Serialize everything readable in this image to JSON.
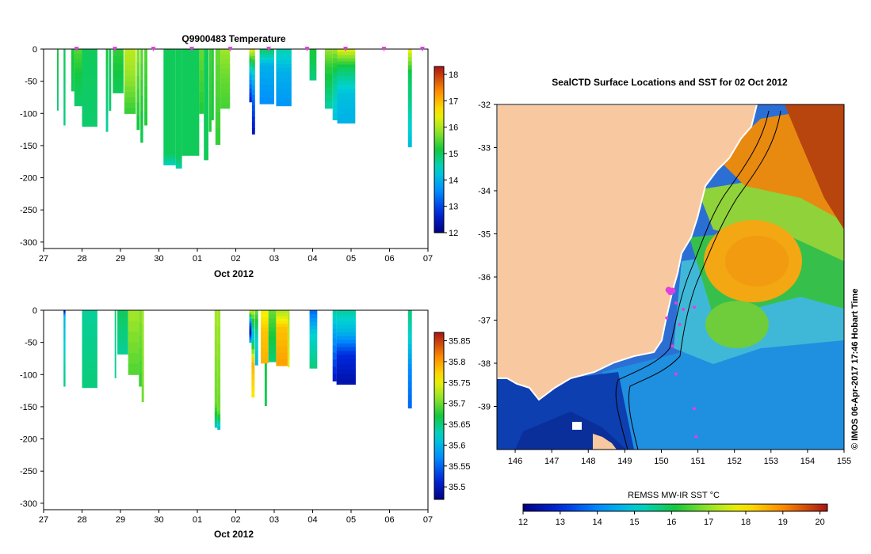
{
  "chart_data": [
    {
      "type": "heatmap",
      "title": "Q9900483  Temperature",
      "xlabel": "Oct 2012",
      "ylabel": "",
      "x_ticks": [
        "27",
        "28",
        "29",
        "30",
        "01",
        "02",
        "03",
        "04",
        "05",
        "06",
        "07"
      ],
      "xlim": [
        0,
        10
      ],
      "ylim": [
        -310,
        0
      ],
      "y_ticks": [
        "0",
        "-50",
        "-100",
        "-150",
        "-200",
        "-250",
        "-300"
      ],
      "colorbar": {
        "min": 12,
        "max": 18.3,
        "ticks": [
          "12",
          "13",
          "14",
          "15",
          "16",
          "17",
          "18"
        ]
      },
      "surface_marker_days": [
        1,
        2,
        3,
        4,
        5,
        6,
        7,
        8,
        9,
        10
      ],
      "profiles": [
        {
          "x": 0.35,
          "w": 0.04,
          "depth": 95,
          "colors": [
            [
              0,
              15.2
            ],
            [
              0.5,
              15.0
            ],
            [
              1,
              14.8
            ]
          ]
        },
        {
          "x": 0.52,
          "w": 0.05,
          "depth": 118,
          "colors": [
            [
              0,
              15.0
            ],
            [
              1,
              14.8
            ]
          ]
        },
        {
          "x": 0.72,
          "w": 0.08,
          "depth": 65,
          "colors": [
            [
              0,
              15.2
            ],
            [
              1,
              15.0
            ]
          ]
        },
        {
          "x": 0.8,
          "w": 0.2,
          "depth": 88,
          "colors": [
            [
              0,
              15.5
            ],
            [
              0.5,
              15.1
            ],
            [
              1,
              14.9
            ]
          ]
        },
        {
          "x": 1.0,
          "w": 0.4,
          "depth": 120,
          "colors": [
            [
              0,
              15.0
            ],
            [
              1,
              14.9
            ]
          ]
        },
        {
          "x": 1.62,
          "w": 0.06,
          "depth": 128,
          "colors": [
            [
              0,
              15.2
            ],
            [
              1,
              14.6
            ]
          ]
        },
        {
          "x": 1.7,
          "w": 0.06,
          "depth": 95,
          "colors": [
            [
              0,
              15.0
            ],
            [
              1,
              14.9
            ]
          ]
        },
        {
          "x": 1.8,
          "w": 0.28,
          "depth": 68,
          "colors": [
            [
              0,
              15.3
            ],
            [
              1,
              15.0
            ]
          ]
        },
        {
          "x": 2.1,
          "w": 0.3,
          "depth": 100,
          "colors": [
            [
              0,
              16.1
            ],
            [
              0.5,
              15.8
            ],
            [
              1,
              15.3
            ]
          ]
        },
        {
          "x": 2.42,
          "w": 0.08,
          "depth": 125,
          "colors": [
            [
              0,
              15.8
            ],
            [
              1,
              15.1
            ]
          ]
        },
        {
          "x": 2.52,
          "w": 0.07,
          "depth": 145,
          "colors": [
            [
              0,
              15.6
            ],
            [
              1,
              15.0
            ]
          ]
        },
        {
          "x": 2.62,
          "w": 0.08,
          "depth": 118,
          "colors": [
            [
              0,
              15.5
            ],
            [
              1,
              15.2
            ]
          ]
        },
        {
          "x": 3.12,
          "w": 0.32,
          "depth": 180,
          "colors": [
            [
              0,
              15.0
            ],
            [
              0.9,
              15.0
            ],
            [
              1,
              14.5
            ]
          ]
        },
        {
          "x": 3.44,
          "w": 0.16,
          "depth": 185,
          "colors": [
            [
              0,
              15.0
            ],
            [
              0.9,
              15.0
            ],
            [
              1,
              14.6
            ]
          ]
        },
        {
          "x": 3.6,
          "w": 0.45,
          "depth": 165,
          "colors": [
            [
              0,
              15.0
            ],
            [
              1,
              15.0
            ]
          ]
        },
        {
          "x": 4.05,
          "w": 0.12,
          "depth": 100,
          "colors": [
            [
              0,
              15.6
            ],
            [
              1,
              15.2
            ]
          ]
        },
        {
          "x": 4.17,
          "w": 0.12,
          "depth": 172,
          "colors": [
            [
              0,
              15.0
            ],
            [
              1,
              15.0
            ]
          ]
        },
        {
          "x": 4.3,
          "w": 0.07,
          "depth": 128,
          "colors": [
            [
              0,
              15.4
            ],
            [
              1,
              15.2
            ]
          ]
        },
        {
          "x": 4.37,
          "w": 0.06,
          "depth": 110,
          "colors": [
            [
              0,
              15.3
            ],
            [
              1,
              15.1
            ]
          ]
        },
        {
          "x": 4.47,
          "w": 0.13,
          "depth": 148,
          "colors": [
            [
              0,
              15.6
            ],
            [
              1,
              15.3
            ]
          ]
        },
        {
          "x": 4.6,
          "w": 0.25,
          "depth": 92,
          "colors": [
            [
              0,
              15.9
            ],
            [
              0.5,
              15.6
            ],
            [
              1,
              15.4
            ]
          ]
        },
        {
          "x": 5.35,
          "w": 0.07,
          "depth": 82,
          "colors": [
            [
              0,
              16.5
            ],
            [
              0.2,
              15.2
            ],
            [
              0.5,
              13.9
            ],
            [
              1,
              12.6
            ]
          ]
        },
        {
          "x": 5.42,
          "w": 0.08,
          "depth": 132,
          "colors": [
            [
              0,
              16.3
            ],
            [
              0.25,
              14.5
            ],
            [
              0.6,
              13.3
            ],
            [
              1,
              12.4
            ]
          ]
        },
        {
          "x": 5.62,
          "w": 0.38,
          "depth": 85,
          "colors": [
            [
              0,
              15.0
            ],
            [
              0.3,
              14.0
            ],
            [
              1,
              13.6
            ]
          ]
        },
        {
          "x": 6.05,
          "w": 0.4,
          "depth": 88,
          "colors": [
            [
              0,
              14.6
            ],
            [
              0.4,
              14.0
            ],
            [
              1,
              13.7
            ]
          ]
        },
        {
          "x": 6.92,
          "w": 0.18,
          "depth": 48,
          "colors": [
            [
              0,
              15.2
            ],
            [
              1,
              14.8
            ]
          ]
        },
        {
          "x": 7.32,
          "w": 0.2,
          "depth": 92,
          "colors": [
            [
              0,
              15.9
            ],
            [
              0.3,
              15.3
            ],
            [
              1,
              14.6
            ]
          ]
        },
        {
          "x": 7.52,
          "w": 0.12,
          "depth": 110,
          "colors": [
            [
              0,
              15.9
            ],
            [
              0.4,
              14.8
            ],
            [
              1,
              14.2
            ]
          ]
        },
        {
          "x": 7.64,
          "w": 0.47,
          "depth": 115,
          "colors": [
            [
              0,
              16.4
            ],
            [
              0.25,
              15.0
            ],
            [
              0.6,
              14.2
            ],
            [
              1,
              14.0
            ]
          ]
        },
        {
          "x": 9.48,
          "w": 0.1,
          "depth": 152,
          "colors": [
            [
              0,
              16.5
            ],
            [
              0.25,
              15.0
            ],
            [
              0.5,
              14.8
            ],
            [
              0.8,
              14.4
            ],
            [
              1,
              14.1
            ]
          ]
        }
      ]
    },
    {
      "type": "heatmap",
      "title": "",
      "xlabel": "Oct 2012",
      "ylabel": "",
      "x_ticks": [
        "27",
        "28",
        "29",
        "30",
        "01",
        "02",
        "03",
        "04",
        "05",
        "06",
        "07"
      ],
      "xlim": [
        0,
        10
      ],
      "ylim": [
        -310,
        0
      ],
      "y_ticks": [
        "0",
        "-50",
        "-100",
        "-150",
        "-200",
        "-250",
        "-300"
      ],
      "colorbar": {
        "min": 35.47,
        "max": 35.87,
        "ticks": [
          "35.5",
          "35.55",
          "35.6",
          "35.65",
          "35.7",
          "35.75",
          "35.8",
          "35.85"
        ]
      },
      "profiles": [
        {
          "x": 0.52,
          "w": 0.05,
          "depth": 118,
          "colors": [
            [
              0,
              35.48
            ],
            [
              0.08,
              35.6
            ],
            [
              1,
              35.65
            ]
          ]
        },
        {
          "x": 1.0,
          "w": 0.4,
          "depth": 120,
          "colors": [
            [
              0,
              35.64
            ],
            [
              1,
              35.65
            ]
          ]
        },
        {
          "x": 1.85,
          "w": 0.04,
          "depth": 105,
          "colors": [
            [
              0,
              35.65
            ],
            [
              1,
              35.64
            ]
          ]
        },
        {
          "x": 1.92,
          "w": 0.28,
          "depth": 68,
          "colors": [
            [
              0,
              35.66
            ],
            [
              1,
              35.64
            ]
          ]
        },
        {
          "x": 2.2,
          "w": 0.28,
          "depth": 100,
          "colors": [
            [
              0,
              35.72
            ],
            [
              1,
              35.69
            ]
          ]
        },
        {
          "x": 2.48,
          "w": 0.08,
          "depth": 118,
          "colors": [
            [
              0,
              35.71
            ],
            [
              1,
              35.68
            ]
          ]
        },
        {
          "x": 2.55,
          "w": 0.06,
          "depth": 142,
          "colors": [
            [
              0,
              35.72
            ],
            [
              1,
              35.7
            ]
          ]
        },
        {
          "x": 4.45,
          "w": 0.07,
          "depth": 182,
          "colors": [
            [
              0,
              35.72
            ],
            [
              0.8,
              35.7
            ],
            [
              1,
              35.63
            ]
          ]
        },
        {
          "x": 4.52,
          "w": 0.08,
          "depth": 185,
          "colors": [
            [
              0,
              35.72
            ],
            [
              0.85,
              35.7
            ],
            [
              1,
              35.6
            ]
          ]
        },
        {
          "x": 5.75,
          "w": 0.06,
          "depth": 148,
          "colors": [
            [
              0,
              35.68
            ],
            [
              1,
              35.66
            ]
          ]
        },
        {
          "x": 5.35,
          "w": 0.06,
          "depth": 50,
          "colors": [
            [
              0,
              35.75
            ],
            [
              0.4,
              35.55
            ],
            [
              0.7,
              35.49
            ],
            [
              1,
              35.6
            ]
          ]
        },
        {
          "x": 5.41,
          "w": 0.08,
          "depth": 135,
          "colors": [
            [
              0,
              35.73
            ],
            [
              0.3,
              35.6
            ],
            [
              0.6,
              35.79
            ],
            [
              1,
              35.76
            ]
          ]
        },
        {
          "x": 5.5,
          "w": 0.08,
          "depth": 85,
          "colors": [
            [
              0,
              35.7
            ],
            [
              0.5,
              35.63
            ],
            [
              1,
              35.6
            ]
          ]
        },
        {
          "x": 5.65,
          "w": 0.2,
          "depth": 82,
          "colors": [
            [
              0,
              35.75
            ],
            [
              0.4,
              35.78
            ],
            [
              1,
              35.79
            ]
          ]
        },
        {
          "x": 5.85,
          "w": 0.2,
          "depth": 80,
          "colors": [
            [
              0,
              35.7
            ],
            [
              0.5,
              35.67
            ],
            [
              1,
              35.65
            ]
          ]
        },
        {
          "x": 6.05,
          "w": 0.3,
          "depth": 86,
          "colors": [
            [
              0,
              35.72
            ],
            [
              0.3,
              35.78
            ],
            [
              1,
              35.8
            ]
          ]
        },
        {
          "x": 6.35,
          "w": 0.05,
          "depth": 88,
          "colors": [
            [
              0,
              35.72
            ],
            [
              1,
              35.75
            ]
          ]
        },
        {
          "x": 6.92,
          "w": 0.2,
          "depth": 90,
          "colors": [
            [
              0,
              35.55
            ],
            [
              0.4,
              35.62
            ],
            [
              1,
              35.65
            ]
          ]
        },
        {
          "x": 7.52,
          "w": 0.1,
          "depth": 110,
          "colors": [
            [
              0,
              35.64
            ],
            [
              0.4,
              35.58
            ],
            [
              1,
              35.5
            ]
          ]
        },
        {
          "x": 7.62,
          "w": 0.5,
          "depth": 115,
          "colors": [
            [
              0,
              35.64
            ],
            [
              0.3,
              35.6
            ],
            [
              0.6,
              35.52
            ],
            [
              1,
              35.49
            ]
          ]
        },
        {
          "x": 9.48,
          "w": 0.1,
          "depth": 152,
          "colors": [
            [
              0,
              35.65
            ],
            [
              0.3,
              35.62
            ],
            [
              0.6,
              35.57
            ],
            [
              1,
              35.55
            ]
          ]
        }
      ]
    },
    {
      "type": "heatmap",
      "title": "SealCTD Surface Locations and SST for 02 Oct 2012",
      "xlim": [
        145.5,
        155
      ],
      "ylim": [
        -40,
        -32
      ],
      "x_ticks": [
        "146",
        "147",
        "148",
        "149",
        "150",
        "151",
        "152",
        "153",
        "154",
        "155"
      ],
      "y_ticks": [
        "-32",
        "-33",
        "-34",
        "-35",
        "-36",
        "-37",
        "-38",
        "-39"
      ],
      "colorbar": {
        "label": "REMSS MW-IR SST °C",
        "min": 12,
        "max": 20.2,
        "ticks": [
          "12",
          "13",
          "14",
          "15",
          "16",
          "17",
          "18",
          "19",
          "20"
        ]
      },
      "seal_positions": [
        {
          "lon": 150.2,
          "lat": -36.3
        },
        {
          "lon": 150.25,
          "lat": -36.35
        },
        {
          "lon": 150.3,
          "lat": -36.32
        },
        {
          "lon": 150.4,
          "lat": -36.6
        },
        {
          "lon": 150.6,
          "lat": -36.75
        },
        {
          "lon": 150.9,
          "lat": -36.7
        },
        {
          "lon": 150.15,
          "lat": -36.95
        },
        {
          "lon": 150.5,
          "lat": -37.1
        },
        {
          "lon": 150.3,
          "lat": -37.6
        },
        {
          "lon": 150.4,
          "lat": -38.25
        },
        {
          "lon": 150.9,
          "lat": -39.05
        },
        {
          "lon": 150.95,
          "lat": -39.7
        }
      ],
      "credit": "© IMOS 06-Apr-2017 17:46 Hobart Time"
    }
  ]
}
